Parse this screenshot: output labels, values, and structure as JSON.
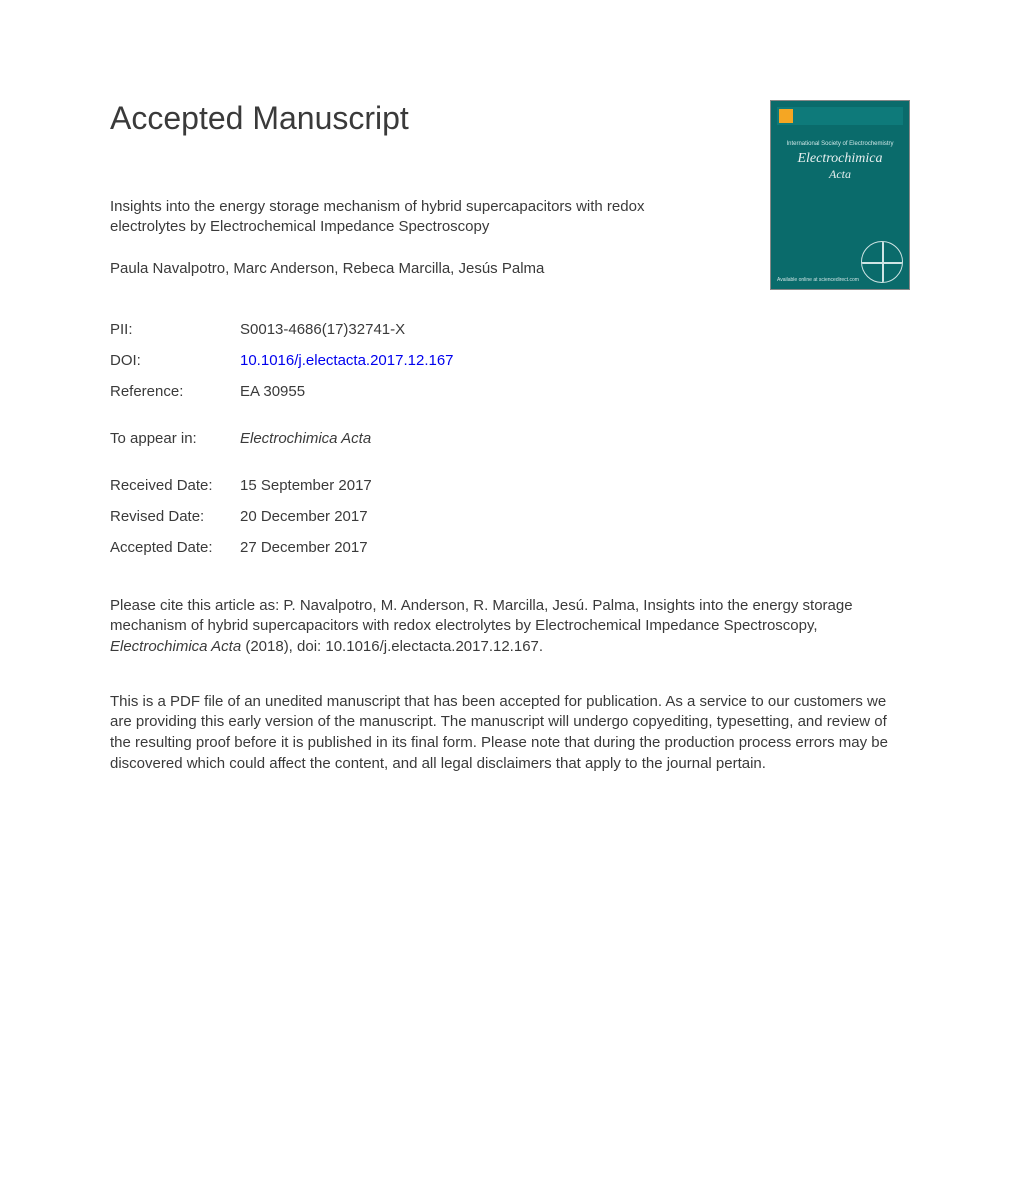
{
  "heading": "Accepted Manuscript",
  "article_title": "Insights into the energy storage mechanism of hybrid supercapacitors with redox electrolytes by Electrochemical Impedance Spectroscopy",
  "authors": "Paula Navalpotro, Marc Anderson, Rebeca Marcilla, Jesús Palma",
  "cover": {
    "midtext": "International Society of Electrochemistry",
    "journal_line1": "Electrochimica",
    "journal_line2": "Acta",
    "available": "Available online at sciencedirect.com"
  },
  "meta": {
    "pii_label": "PII:",
    "pii": "S0013-4686(17)32741-X",
    "doi_label": "DOI:",
    "doi": "10.1016/j.electacta.2017.12.167",
    "ref_label": "Reference:",
    "ref": "EA 30955",
    "appear_label": "To appear in:",
    "appear": "Electrochimica Acta",
    "received_label": "Received Date:",
    "received": "15 September 2017",
    "revised_label": "Revised Date:",
    "revised": "20 December 2017",
    "accepted_label": "Accepted Date:",
    "accepted": "27 December 2017"
  },
  "citation": {
    "prefix": "Please cite this article as: P. Navalpotro, M. Anderson, R. Marcilla, Jesú. Palma, Insights into the energy storage mechanism of hybrid supercapacitors with redox electrolytes by Electrochemical Impedance Spectroscopy, ",
    "journal": "Electrochimica Acta",
    "suffix": " (2018), doi: 10.1016/j.electacta.2017.12.167."
  },
  "disclaimer": "This is a PDF file of an unedited manuscript that has been accepted for publication. As a service to our customers we are providing this early version of the manuscript. The manuscript will undergo copyediting, typesetting, and review of the resulting proof before it is published in its final form. Please note that during the production process errors may be discovered which could affect the content, and all legal disclaimers that apply to the journal pertain.",
  "colors": {
    "text": "#3a3a3a",
    "link": "#0000ee",
    "cover_bg": "#0a6b6b",
    "background": "#ffffff"
  },
  "typography": {
    "title_fontsize": 32,
    "body_fontsize": 15,
    "cover_journal_fontsize": 14
  }
}
